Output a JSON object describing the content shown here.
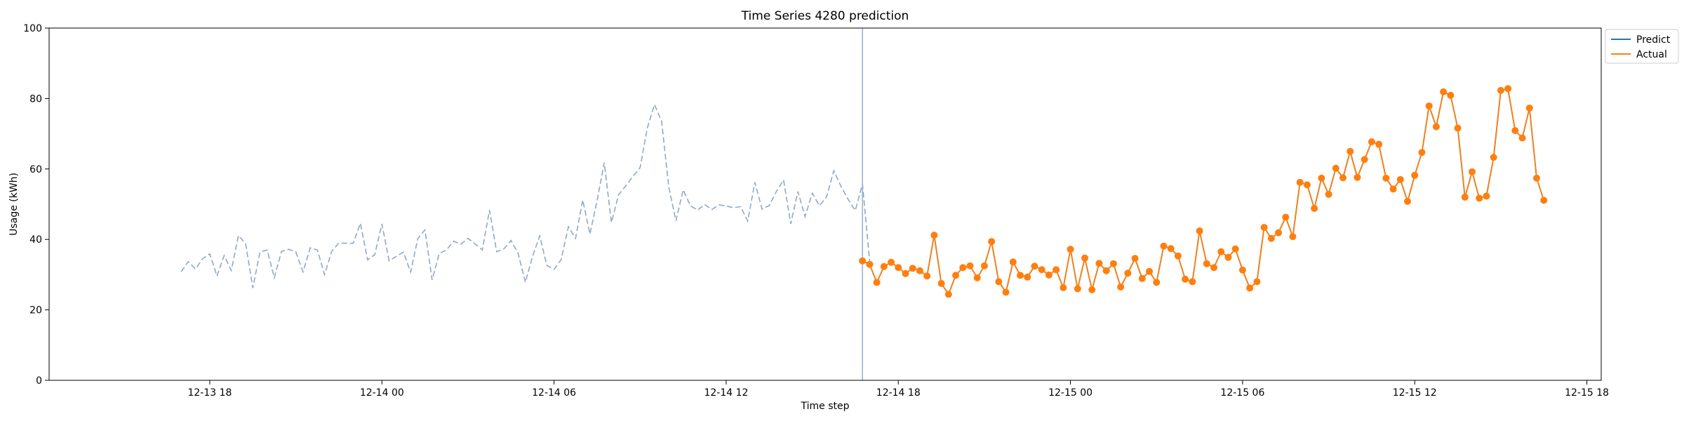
{
  "chart_data": {
    "type": "line",
    "title": "Time Series 4280 prediction",
    "xlabel": "Time step",
    "ylabel": "Usage (kWh)",
    "ylim": [
      0,
      100
    ],
    "yticks": [
      0,
      20,
      40,
      60,
      80,
      100
    ],
    "xlim_hours": [
      -5.6,
      48.5
    ],
    "xticks": [
      {
        "label": "12-13 18",
        "hour": 0
      },
      {
        "label": "12-14 00",
        "hour": 6
      },
      {
        "label": "12-14 06",
        "hour": 12
      },
      {
        "label": "12-14 12",
        "hour": 18
      },
      {
        "label": "12-14 18",
        "hour": 24
      },
      {
        "label": "12-15 00",
        "hour": 30
      },
      {
        "label": "12-15 06",
        "hour": 36
      },
      {
        "label": "12-15 12",
        "hour": 42
      },
      {
        "label": "12-15 18",
        "hour": 48
      }
    ],
    "x_start_hour": -1,
    "x_step_hours": 0.25,
    "split_hour": 22.75,
    "history": {
      "color": "#8fa8c8",
      "values": [
        30.8,
        33.7,
        31.6,
        34.5,
        35.9,
        29.6,
        35.4,
        31.2,
        41.1,
        38.8,
        26.2,
        36.4,
        37.0,
        29.1,
        36.6,
        37.2,
        36.4,
        30.8,
        37.6,
        37.0,
        30.0,
        36.6,
        39.0,
        38.9,
        38.9,
        44.6,
        34.2,
        35.7,
        44.4,
        33.9,
        35.2,
        36.4,
        30.7,
        40.2,
        42.7,
        28.5,
        36.0,
        37.0,
        39.5,
        38.6,
        40.3,
        38.7,
        37.0,
        48.3,
        36.5,
        37.3,
        39.7,
        36.0,
        27.8,
        35.2,
        41.0,
        32.6,
        31.5,
        34.3,
        43.6,
        40.3,
        51.2,
        41.5,
        51.0,
        61.8,
        44.8,
        52.7,
        55.2,
        57.9,
        60.4,
        71.6,
        78.3,
        73.5,
        54.8,
        45.3,
        54.1,
        49.6,
        48.3,
        49.9,
        48.5,
        49.8,
        49.5,
        49.0,
        49.3,
        45.2,
        56.2,
        48.6,
        49.6,
        53.6,
        56.9,
        44.4,
        53.6,
        46.5,
        53.1,
        49.6,
        52.1,
        59.5,
        55.1,
        51.4,
        48.2,
        55.7,
        33.9
      ]
    },
    "series": [
      {
        "name": "Predict",
        "color": "#1f77b4",
        "values": [
          33.9,
          32.9,
          27.8,
          32.3,
          33.5,
          32.0,
          30.3,
          31.8,
          31.1,
          29.6,
          41.2,
          27.5,
          24.4,
          29.8,
          32.0,
          32.5,
          29.1,
          32.5,
          39.4,
          28.0,
          25.0,
          33.6,
          29.8,
          29.3,
          32.4,
          31.4,
          29.9,
          31.4,
          26.3,
          37.2,
          26.0,
          34.7,
          25.7,
          33.2,
          31.1,
          33.1,
          26.5,
          30.4,
          34.6,
          28.9,
          30.9,
          27.8,
          38.1,
          37.4,
          35.3,
          28.7,
          28.0,
          42.4,
          33.1,
          32.0,
          36.5,
          34.9,
          37.3,
          31.3,
          26.2,
          28.0,
          43.4,
          40.3,
          41.9,
          46.3,
          40.8,
          56.2,
          55.5,
          48.8,
          57.4,
          52.8,
          60.2,
          57.5,
          65.0,
          57.6,
          62.7,
          67.7,
          67.0,
          57.4,
          54.3,
          57.0,
          50.8,
          58.2,
          64.7,
          77.9,
          72.0,
          81.9,
          80.9,
          71.6,
          52.0,
          59.2,
          51.7,
          52.3,
          63.3,
          82.3,
          82.8,
          70.9,
          68.8,
          77.3,
          57.4,
          51.1
        ]
      },
      {
        "name": "Actual",
        "color": "#ff7f0e",
        "values": [
          33.9,
          32.9,
          27.8,
          32.3,
          33.5,
          32.0,
          30.3,
          31.8,
          31.1,
          29.6,
          41.2,
          27.5,
          24.4,
          29.8,
          32.0,
          32.5,
          29.1,
          32.5,
          39.4,
          28.0,
          25.0,
          33.6,
          29.8,
          29.3,
          32.4,
          31.4,
          29.9,
          31.4,
          26.3,
          37.2,
          26.0,
          34.7,
          25.7,
          33.2,
          31.1,
          33.1,
          26.5,
          30.4,
          34.6,
          28.9,
          30.9,
          27.8,
          38.1,
          37.4,
          35.3,
          28.7,
          28.0,
          42.4,
          33.1,
          32.0,
          36.5,
          34.9,
          37.3,
          31.3,
          26.2,
          28.0,
          43.4,
          40.3,
          41.9,
          46.3,
          40.8,
          56.2,
          55.5,
          48.8,
          57.4,
          52.8,
          60.2,
          57.5,
          65.0,
          57.6,
          62.7,
          67.7,
          67.0,
          57.4,
          54.3,
          57.0,
          50.8,
          58.2,
          64.7,
          77.9,
          72.0,
          81.9,
          80.9,
          71.6,
          52.0,
          59.2,
          51.7,
          52.3,
          63.3,
          82.3,
          82.8,
          70.9,
          68.8,
          77.3,
          57.4,
          51.1
        ]
      }
    ],
    "legend": {
      "placement": "top-right-outside",
      "items": [
        "Predict",
        "Actual"
      ]
    },
    "grid": false
  }
}
